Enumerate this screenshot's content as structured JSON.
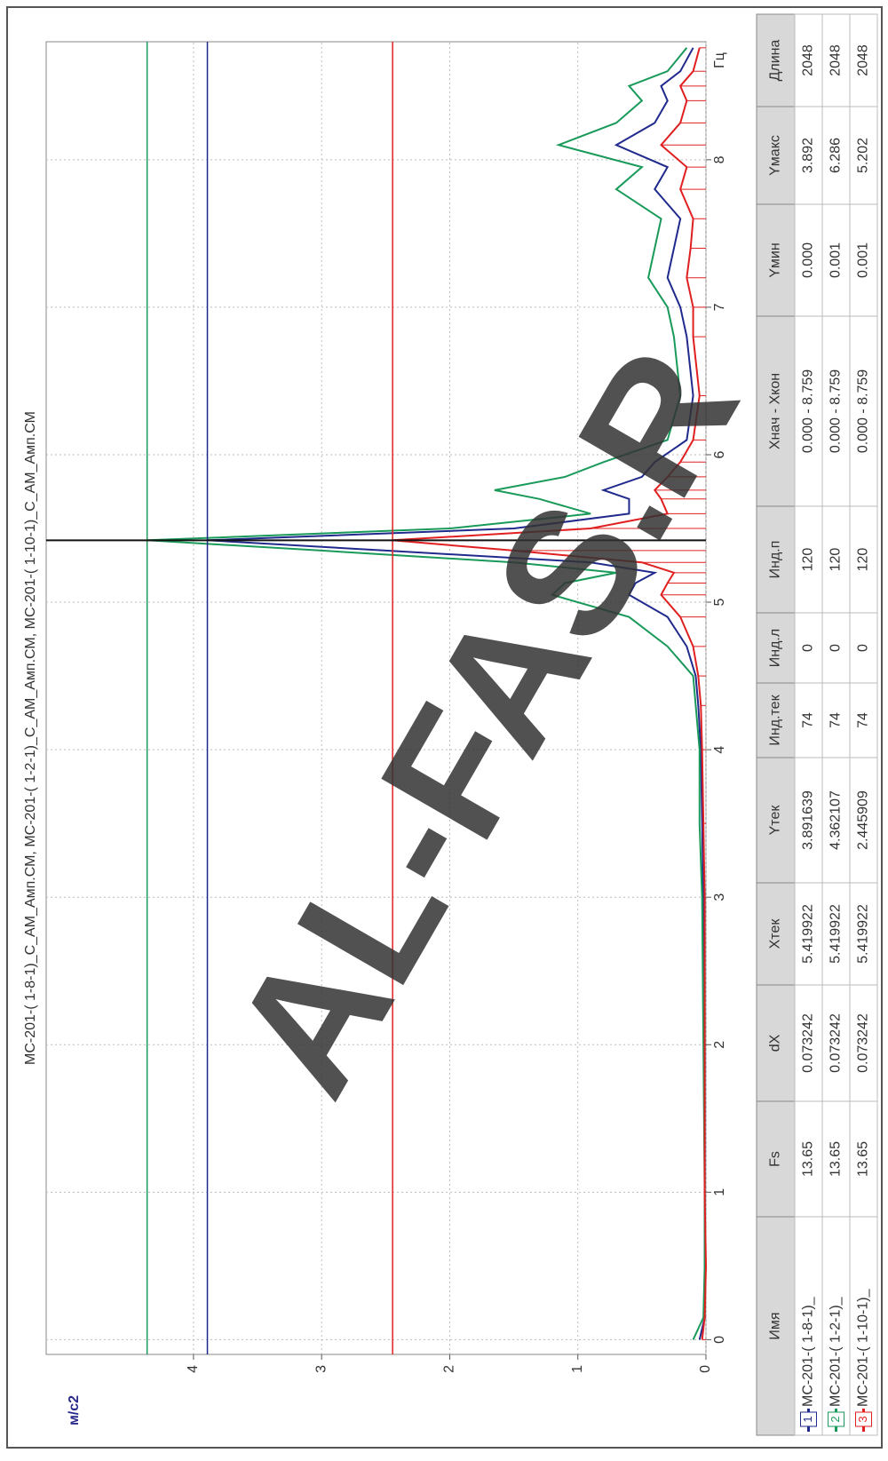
{
  "chart_data": {
    "type": "line",
    "title": "МС-201-( 1-8-1)_С_АМ_Амп.СМ, МС-201-( 1-2-1)_С_АМ_Амп.СМ, МС-201-( 1-10-1)_С_АМ_Амп.СМ",
    "x_label": "Гц",
    "y_label": "м/с2",
    "x": [
      0,
      0.15,
      0.5,
      1,
      2,
      3,
      3.5,
      4,
      4.3,
      4.5,
      4.7,
      4.9,
      5.05,
      5.13,
      5.2,
      5.27,
      5.35,
      5.42,
      5.5,
      5.6,
      5.7,
      5.76,
      5.85,
      5.95,
      6.1,
      6.4,
      6.8,
      7.0,
      7.2,
      7.4,
      7.6,
      7.8,
      7.95,
      8.1,
      8.25,
      8.4,
      8.5,
      8.6,
      8.759
    ],
    "series": [
      {
        "name": "МС-201-( 1-8-1)_",
        "color": "#1f2a8c",
        "values": [
          0.05,
          0.01,
          0.01,
          0.01,
          0.01,
          0.02,
          0.03,
          0.04,
          0.06,
          0.08,
          0.15,
          0.3,
          0.6,
          0.55,
          0.4,
          0.9,
          2.5,
          3.89,
          1.5,
          0.6,
          0.6,
          0.8,
          0.5,
          0.4,
          0.15,
          0.1,
          0.15,
          0.2,
          0.3,
          0.25,
          0.2,
          0.4,
          0.3,
          0.7,
          0.4,
          0.3,
          0.35,
          0.2,
          0.1
        ]
      },
      {
        "name": "МС-201-( 1-2-1)_",
        "color": "#1a9a5a",
        "values": [
          0.1,
          0.02,
          0.01,
          0.01,
          0.02,
          0.03,
          0.05,
          0.05,
          0.08,
          0.1,
          0.3,
          0.6,
          1.2,
          1.1,
          0.7,
          1.5,
          3.0,
          4.36,
          2.0,
          0.9,
          1.3,
          1.65,
          1.1,
          0.8,
          0.3,
          0.2,
          0.25,
          0.3,
          0.45,
          0.4,
          0.35,
          0.7,
          0.5,
          1.15,
          0.7,
          0.5,
          0.6,
          0.3,
          0.15
        ]
      },
      {
        "name": "МС-201-( 1-10-1)_",
        "color": "#e02020",
        "stems": true,
        "values": [
          0.03,
          0.01,
          0.0,
          0.01,
          0.01,
          0.01,
          0.02,
          0.03,
          0.04,
          0.06,
          0.1,
          0.2,
          0.35,
          0.3,
          0.25,
          0.5,
          1.5,
          2.45,
          0.9,
          0.3,
          0.35,
          0.4,
          0.3,
          0.2,
          0.1,
          0.05,
          0.1,
          0.1,
          0.15,
          0.12,
          0.1,
          0.2,
          0.15,
          0.35,
          0.2,
          0.15,
          0.2,
          0.1,
          0.05
        ]
      }
    ],
    "cursor_x": 5.419922,
    "cursor_y": [
      3.891639,
      4.362107,
      2.445909
    ],
    "xlim": [
      -0.1,
      8.8
    ],
    "ylim": [
      0,
      5.15
    ],
    "xticks": [
      0,
      1,
      2,
      3,
      4,
      5,
      6,
      7,
      8
    ],
    "yticks": [
      0,
      1,
      2,
      3,
      4
    ],
    "grid": true
  },
  "table": {
    "header": [
      "Имя",
      "Fs",
      "dX",
      "Хтек",
      "Yтек",
      "Инд.тек",
      "Инд.л",
      "Инд.п",
      "Хнач - Хкон",
      "Yмин",
      "Yмакс",
      "Длина"
    ],
    "rows": [
      {
        "index": "1",
        "cells": [
          "МС-201-( 1-8-1)_",
          "13.65",
          "0.073242",
          "5.419922",
          "3.891639",
          "74",
          "0",
          "120",
          "0.000 - 8.759",
          "0.000",
          "3.892",
          "2048"
        ]
      },
      {
        "index": "2",
        "cells": [
          "МС-201-( 1-2-1)_",
          "13.65",
          "0.073242",
          "5.419922",
          "4.362107",
          "74",
          "0",
          "120",
          "0.000 - 8.759",
          "0.001",
          "6.286",
          "2048"
        ]
      },
      {
        "index": "3",
        "cells": [
          "МС-201-( 1-10-1)_",
          "13.65",
          "0.073242",
          "5.419922",
          "2.445909",
          "74",
          "0",
          "120",
          "0.000 - 8.759",
          "0.001",
          "5.202",
          "2048"
        ]
      }
    ]
  },
  "watermark": "AL-FAS.R"
}
